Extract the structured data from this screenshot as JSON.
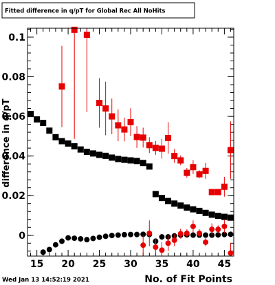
{
  "title": "Fitted difference in q/pT for Global Rec All NoHits",
  "timestamp": "Wed Jan 13 14:52:19 2021",
  "colors": {
    "red": "#e60000",
    "black": "#000000",
    "frame": "#000000"
  },
  "chart_data": {
    "type": "scatter",
    "title": "Fitted difference in q/pT for Global Rec All NoHits",
    "xlabel": "No. of Fit Points",
    "ylabel": "difference in q/pT",
    "xlim": [
      13.5,
      46.5
    ],
    "ylim": [
      -0.0105,
      0.1045
    ],
    "x_ticks": [
      15,
      20,
      25,
      30,
      35,
      40,
      45
    ],
    "y_ticks": [
      0,
      0.02,
      0.04,
      0.06,
      0.08,
      0.1
    ],
    "x_tick_labels": [
      "15",
      "20",
      "25",
      "30",
      "35",
      "40",
      "45"
    ],
    "y_tick_labels": [
      "0",
      "0.02",
      "0.04",
      "0.06",
      "0.08",
      "0.1"
    ],
    "grid": false,
    "series": [
      {
        "marker": "square",
        "color": "#000000",
        "points": [
          {
            "x": 14,
            "y": 0.0612
          },
          {
            "x": 15,
            "y": 0.0585
          },
          {
            "x": 16,
            "y": 0.0567
          },
          {
            "x": 17,
            "y": 0.0528
          },
          {
            "x": 18,
            "y": 0.0495
          },
          {
            "x": 19,
            "y": 0.0475
          },
          {
            "x": 20,
            "y": 0.0463
          },
          {
            "x": 21,
            "y": 0.0449
          },
          {
            "x": 22,
            "y": 0.0433
          },
          {
            "x": 23,
            "y": 0.0421
          },
          {
            "x": 24,
            "y": 0.0413
          },
          {
            "x": 25,
            "y": 0.0406
          },
          {
            "x": 26,
            "y": 0.0401
          },
          {
            "x": 27,
            "y": 0.0392
          },
          {
            "x": 28,
            "y": 0.0385
          },
          {
            "x": 29,
            "y": 0.0381
          },
          {
            "x": 30,
            "y": 0.0378
          },
          {
            "x": 31,
            "y": 0.0375
          },
          {
            "x": 32,
            "y": 0.0365
          },
          {
            "x": 33,
            "y": 0.0347
          },
          {
            "x": 34,
            "y": 0.0208
          },
          {
            "x": 35,
            "y": 0.0188
          },
          {
            "x": 36,
            "y": 0.0173
          },
          {
            "x": 37,
            "y": 0.016
          },
          {
            "x": 38,
            "y": 0.015
          },
          {
            "x": 39,
            "y": 0.014
          },
          {
            "x": 40,
            "y": 0.0131
          },
          {
            "x": 41,
            "y": 0.0123
          },
          {
            "x": 42,
            "y": 0.0113
          },
          {
            "x": 43,
            "y": 0.0104
          },
          {
            "x": 44,
            "y": 0.0098
          },
          {
            "x": 45,
            "y": 0.0093
          },
          {
            "x": 46,
            "y": 0.0089
          }
        ]
      },
      {
        "marker": "square",
        "color": "#e60000",
        "points": [
          {
            "x": 19,
            "y": 0.0751,
            "err": 0.0205
          },
          {
            "x": 21,
            "y": 0.1037,
            "err": 0.055
          },
          {
            "x": 23,
            "y": 0.1012,
            "err": 0.039
          },
          {
            "x": 25,
            "y": 0.0668,
            "err": 0.0125
          },
          {
            "x": 26,
            "y": 0.064,
            "err": 0.0135
          },
          {
            "x": 27,
            "y": 0.06,
            "err": 0.009
          },
          {
            "x": 28,
            "y": 0.0555,
            "err": 0.008
          },
          {
            "x": 29,
            "y": 0.0534,
            "err": 0.006
          },
          {
            "x": 30,
            "y": 0.0571,
            "err": 0.007
          },
          {
            "x": 31,
            "y": 0.0496,
            "err": 0.0055
          },
          {
            "x": 32,
            "y": 0.0493,
            "err": 0.005
          },
          {
            "x": 33,
            "y": 0.0455,
            "err": 0.004
          },
          {
            "x": 34,
            "y": 0.0441,
            "err": 0.0035
          },
          {
            "x": 35,
            "y": 0.0437,
            "err": 0.005
          },
          {
            "x": 36,
            "y": 0.0491,
            "err": 0.008
          },
          {
            "x": 37,
            "y": 0.04,
            "err": 0.0035
          },
          {
            "x": 38,
            "y": 0.0378,
            "err": 0.0025
          },
          {
            "x": 39,
            "y": 0.0315,
            "err": 0.0025
          },
          {
            "x": 40,
            "y": 0.0344,
            "err": 0.0035
          },
          {
            "x": 41,
            "y": 0.0308,
            "err": 0.002
          },
          {
            "x": 42,
            "y": 0.0325,
            "err": 0.004
          },
          {
            "x": 43,
            "y": 0.0218,
            "err": 0.0015
          },
          {
            "x": 44,
            "y": 0.0218,
            "err": 0.0015
          },
          {
            "x": 45,
            "y": 0.0245,
            "err": 0.005
          },
          {
            "x": 46,
            "y": 0.043,
            "err": 0.0145
          }
        ]
      },
      {
        "marker": "circle",
        "color": "#000000",
        "points": [
          {
            "x": 16,
            "y": -0.0085
          },
          {
            "x": 17,
            "y": -0.0072
          },
          {
            "x": 18,
            "y": -0.0048
          },
          {
            "x": 19,
            "y": -0.003
          },
          {
            "x": 20,
            "y": -0.0013
          },
          {
            "x": 21,
            "y": -0.0015
          },
          {
            "x": 22,
            "y": -0.0018
          },
          {
            "x": 23,
            "y": -0.0022
          },
          {
            "x": 24,
            "y": -0.0016
          },
          {
            "x": 25,
            "y": -0.001
          },
          {
            "x": 26,
            "y": -0.0005
          },
          {
            "x": 27,
            "y": -0.0001
          },
          {
            "x": 28,
            "y": 0.0001
          },
          {
            "x": 29,
            "y": 0.0003
          },
          {
            "x": 30,
            "y": 0.0004
          },
          {
            "x": 31,
            "y": 0.0004
          },
          {
            "x": 32,
            "y": 0.0005
          },
          {
            "x": 33,
            "y": 0.0004
          },
          {
            "x": 34,
            "y": -0.003
          },
          {
            "x": 35,
            "y": -0.0008
          },
          {
            "x": 36,
            "y": -0.0008
          },
          {
            "x": 37,
            "y": -0.0003
          },
          {
            "x": 38,
            "y": 0.0001
          },
          {
            "x": 39,
            "y": 0.0002
          },
          {
            "x": 40,
            "y": 0.0001
          },
          {
            "x": 41,
            "y": 0.0001
          },
          {
            "x": 42,
            "y": 0.0001
          },
          {
            "x": 43,
            "y": 0.0001
          },
          {
            "x": 44,
            "y": 0.0002
          },
          {
            "x": 45,
            "y": 0.0004
          },
          {
            "x": 46,
            "y": 0.0005
          }
        ]
      },
      {
        "marker": "circle",
        "color": "#e60000",
        "points": [
          {
            "x": 32,
            "y": -0.005,
            "err": 0.005
          },
          {
            "x": 33,
            "y": 0.001,
            "err": 0.0065
          },
          {
            "x": 34,
            "y": -0.006,
            "err": 0.0045
          },
          {
            "x": 35,
            "y": -0.0075,
            "err": 0.004
          },
          {
            "x": 36,
            "y": -0.004,
            "err": 0.004
          },
          {
            "x": 37,
            "y": -0.0025,
            "err": 0.003
          },
          {
            "x": 38,
            "y": 0.0008,
            "err": 0.0025
          },
          {
            "x": 39,
            "y": 0.001,
            "err": 0.002
          },
          {
            "x": 40,
            "y": 0.0045,
            "err": 0.003
          },
          {
            "x": 41,
            "y": 0.001,
            "err": 0.002
          },
          {
            "x": 42,
            "y": -0.0035,
            "err": 0.002
          },
          {
            "x": 43,
            "y": 0.003,
            "err": 0.003
          },
          {
            "x": 44,
            "y": 0.003,
            "err": 0.002
          },
          {
            "x": 45,
            "y": 0.0045,
            "err": 0.0035
          },
          {
            "x": 46,
            "y": -0.009,
            "err": 0.005
          }
        ]
      }
    ]
  }
}
